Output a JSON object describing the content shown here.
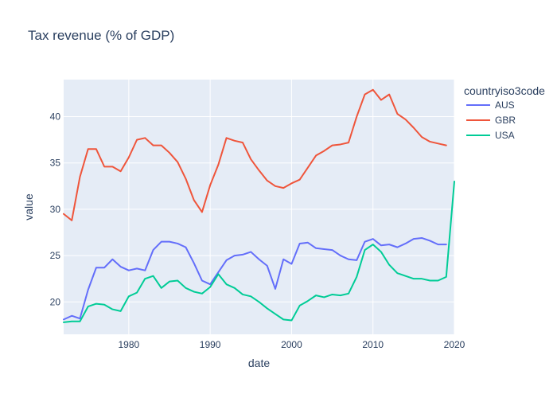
{
  "chart_data": {
    "type": "line",
    "title": "Tax revenue (% of GDP)",
    "xlabel": "date",
    "ylabel": "value",
    "xlim": [
      1972,
      2020
    ],
    "ylim": [
      16.5,
      44
    ],
    "xticks": [
      1980,
      1990,
      2000,
      2010,
      2020
    ],
    "yticks": [
      20,
      25,
      30,
      35,
      40
    ],
    "grid": true,
    "legend": {
      "title": "countryiso3code",
      "placement": "top-right"
    },
    "colors": {
      "AUS": "#636efa",
      "GBR": "#ef553b",
      "USA": "#00cc96",
      "plot_bg": "#e5ecf6",
      "grid": "#ffffff",
      "text": "#2a3f5f"
    },
    "x": [
      1972,
      1973,
      1974,
      1975,
      1976,
      1977,
      1978,
      1979,
      1980,
      1981,
      1982,
      1983,
      1984,
      1985,
      1986,
      1987,
      1988,
      1989,
      1990,
      1991,
      1992,
      1993,
      1994,
      1995,
      1996,
      1997,
      1998,
      1999,
      2000,
      2001,
      2002,
      2003,
      2004,
      2005,
      2006,
      2007,
      2008,
      2009,
      2010,
      2011,
      2012,
      2013,
      2014,
      2015,
      2016,
      2017,
      2018,
      2019,
      2020
    ],
    "series": [
      {
        "name": "AUS",
        "values": [
          18.1,
          18.5,
          18.2,
          21.3,
          23.7,
          23.7,
          24.6,
          23.8,
          23.4,
          23.6,
          23.4,
          25.6,
          26.5,
          26.5,
          26.3,
          25.9,
          24.2,
          22.3,
          21.9,
          23.2,
          24.5,
          25.0,
          25.1,
          25.4,
          24.6,
          23.9,
          21.4,
          24.6,
          24.1,
          26.3,
          26.4,
          25.8,
          25.7,
          25.6,
          25.0,
          24.6,
          24.5,
          26.5,
          26.8,
          26.1,
          26.2,
          25.9,
          26.3,
          26.8,
          26.9,
          26.6,
          26.2,
          26.2,
          null
        ]
      },
      {
        "name": "GBR",
        "values": [
          29.5,
          28.8,
          33.5,
          36.5,
          36.5,
          34.6,
          34.6,
          34.1,
          35.6,
          37.5,
          37.7,
          36.9,
          36.9,
          36.1,
          35.1,
          33.3,
          31.0,
          29.7,
          32.6,
          34.8,
          37.7,
          37.4,
          37.2,
          35.4,
          34.2,
          33.1,
          32.5,
          32.3,
          32.8,
          33.2,
          34.5,
          35.8,
          36.3,
          36.9,
          37.0,
          37.2,
          40.0,
          42.4,
          42.9,
          41.8,
          42.4,
          40.3,
          39.7,
          38.8,
          37.8,
          37.3,
          37.1,
          36.9,
          null
        ]
      },
      {
        "name": "USA",
        "values": [
          17.8,
          17.9,
          17.9,
          19.5,
          19.8,
          19.7,
          19.2,
          19.0,
          20.6,
          21.0,
          22.5,
          22.8,
          21.5,
          22.2,
          22.3,
          21.5,
          21.1,
          20.9,
          21.6,
          23.0,
          21.9,
          21.5,
          20.8,
          20.6,
          20.0,
          19.3,
          18.7,
          18.1,
          18.0,
          19.6,
          20.1,
          20.7,
          20.5,
          20.8,
          20.7,
          20.9,
          22.7,
          25.6,
          26.2,
          25.4,
          24.0,
          23.1,
          22.8,
          22.5,
          22.5,
          22.3,
          22.3,
          22.7,
          33.0
        ]
      }
    ]
  }
}
